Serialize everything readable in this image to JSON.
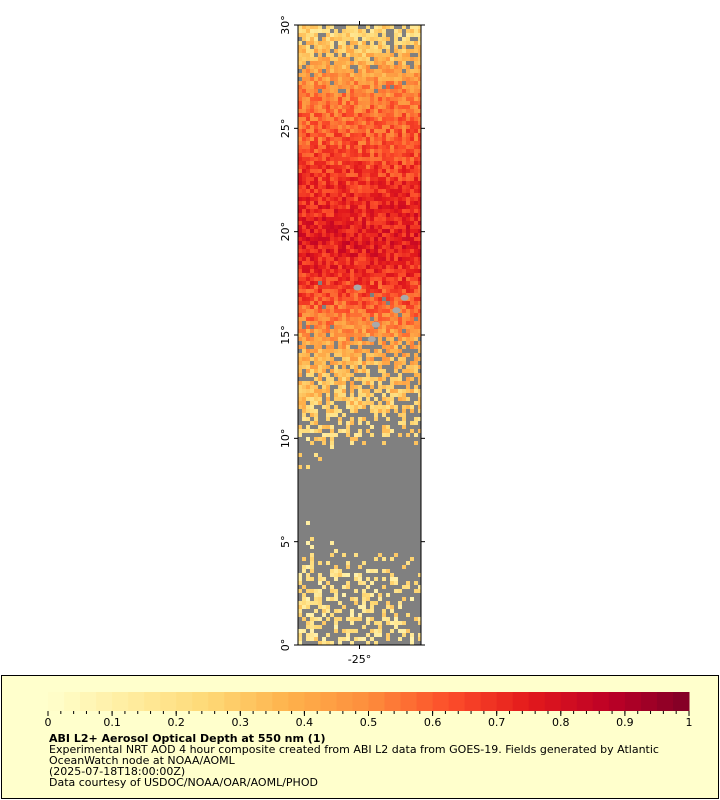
{
  "map": {
    "lat_range": [
      0,
      30
    ],
    "lon_range": [
      -28,
      -22
    ],
    "lat_ticks": [
      {
        "value": 0,
        "label": "0°"
      },
      {
        "value": 5,
        "label": "5°"
      },
      {
        "value": 10,
        "label": "10°"
      },
      {
        "value": 15,
        "label": "15°"
      },
      {
        "value": 20,
        "label": "20°"
      },
      {
        "value": 25,
        "label": "25°"
      },
      {
        "value": 30,
        "label": "30°"
      }
    ],
    "lon_ticks": [
      {
        "value": -25,
        "label": "-25°"
      }
    ],
    "no_data_color": "#808080",
    "land_color": "#a9a9a9",
    "aod_by_latitude": [
      {
        "lat": 0.5,
        "aod": 0.2,
        "coverage": 0.55
      },
      {
        "lat": 2,
        "aod": 0.2,
        "coverage": 0.6
      },
      {
        "lat": 4,
        "aod": 0.2,
        "coverage": 0.35
      },
      {
        "lat": 5.5,
        "aod": 0.2,
        "coverage": 0.05
      },
      {
        "lat": 8,
        "aod": 0.2,
        "coverage": 0.0
      },
      {
        "lat": 9.5,
        "aod": 0.22,
        "coverage": 0.15
      },
      {
        "lat": 10.5,
        "aod": 0.25,
        "coverage": 0.55
      },
      {
        "lat": 12,
        "aod": 0.3,
        "coverage": 0.75
      },
      {
        "lat": 13.5,
        "aod": 0.35,
        "coverage": 0.85
      },
      {
        "lat": 15,
        "aod": 0.45,
        "coverage": 0.92
      },
      {
        "lat": 16.5,
        "aod": 0.6,
        "coverage": 0.97
      },
      {
        "lat": 18,
        "aod": 0.7,
        "coverage": 1.0
      },
      {
        "lat": 19.5,
        "aod": 0.75,
        "coverage": 1.0
      },
      {
        "lat": 21,
        "aod": 0.72,
        "coverage": 1.0
      },
      {
        "lat": 22.5,
        "aod": 0.68,
        "coverage": 1.0
      },
      {
        "lat": 24,
        "aod": 0.62,
        "coverage": 1.0
      },
      {
        "lat": 25.5,
        "aod": 0.58,
        "coverage": 1.0
      },
      {
        "lat": 27,
        "aod": 0.5,
        "coverage": 0.95
      },
      {
        "lat": 28.5,
        "aod": 0.35,
        "coverage": 0.85
      },
      {
        "lat": 29.5,
        "aod": 0.25,
        "coverage": 0.75
      }
    ]
  },
  "legend": {
    "colorbar": {
      "range": [
        0,
        1
      ],
      "tick_labels": [
        {
          "value": 0,
          "label": "0"
        },
        {
          "value": 0.1,
          "label": "0.1"
        },
        {
          "value": 0.2,
          "label": "0.2"
        },
        {
          "value": 0.3,
          "label": "0.3"
        },
        {
          "value": 0.4,
          "label": "0.4"
        },
        {
          "value": 0.5,
          "label": "0.5"
        },
        {
          "value": 0.6,
          "label": "0.6"
        },
        {
          "value": 0.7,
          "label": "0.7"
        },
        {
          "value": 0.8,
          "label": "0.8"
        },
        {
          "value": 0.9,
          "label": "0.9"
        },
        {
          "value": 1,
          "label": "1"
        }
      ],
      "colors": [
        "#ffffcc",
        "#ffeda0",
        "#fed976",
        "#feb24c",
        "#fd8d3c",
        "#fc4e2a",
        "#e31a1c",
        "#bd0026",
        "#800026"
      ]
    },
    "title": "ABI L2+ Aerosol Optical Depth at 550 nm (1)",
    "line1": "Experimental NRT AOD 4 hour composite created from ABI L2 data from GOES-19. Fields generated by Atlantic",
    "line2": "OceanWatch node at NOAA/AOML",
    "line3": "(2025-07-18T18:00:00Z)",
    "line4": "Data courtesy of USDOC/NOAA/OAR/AOML/PHOD"
  }
}
